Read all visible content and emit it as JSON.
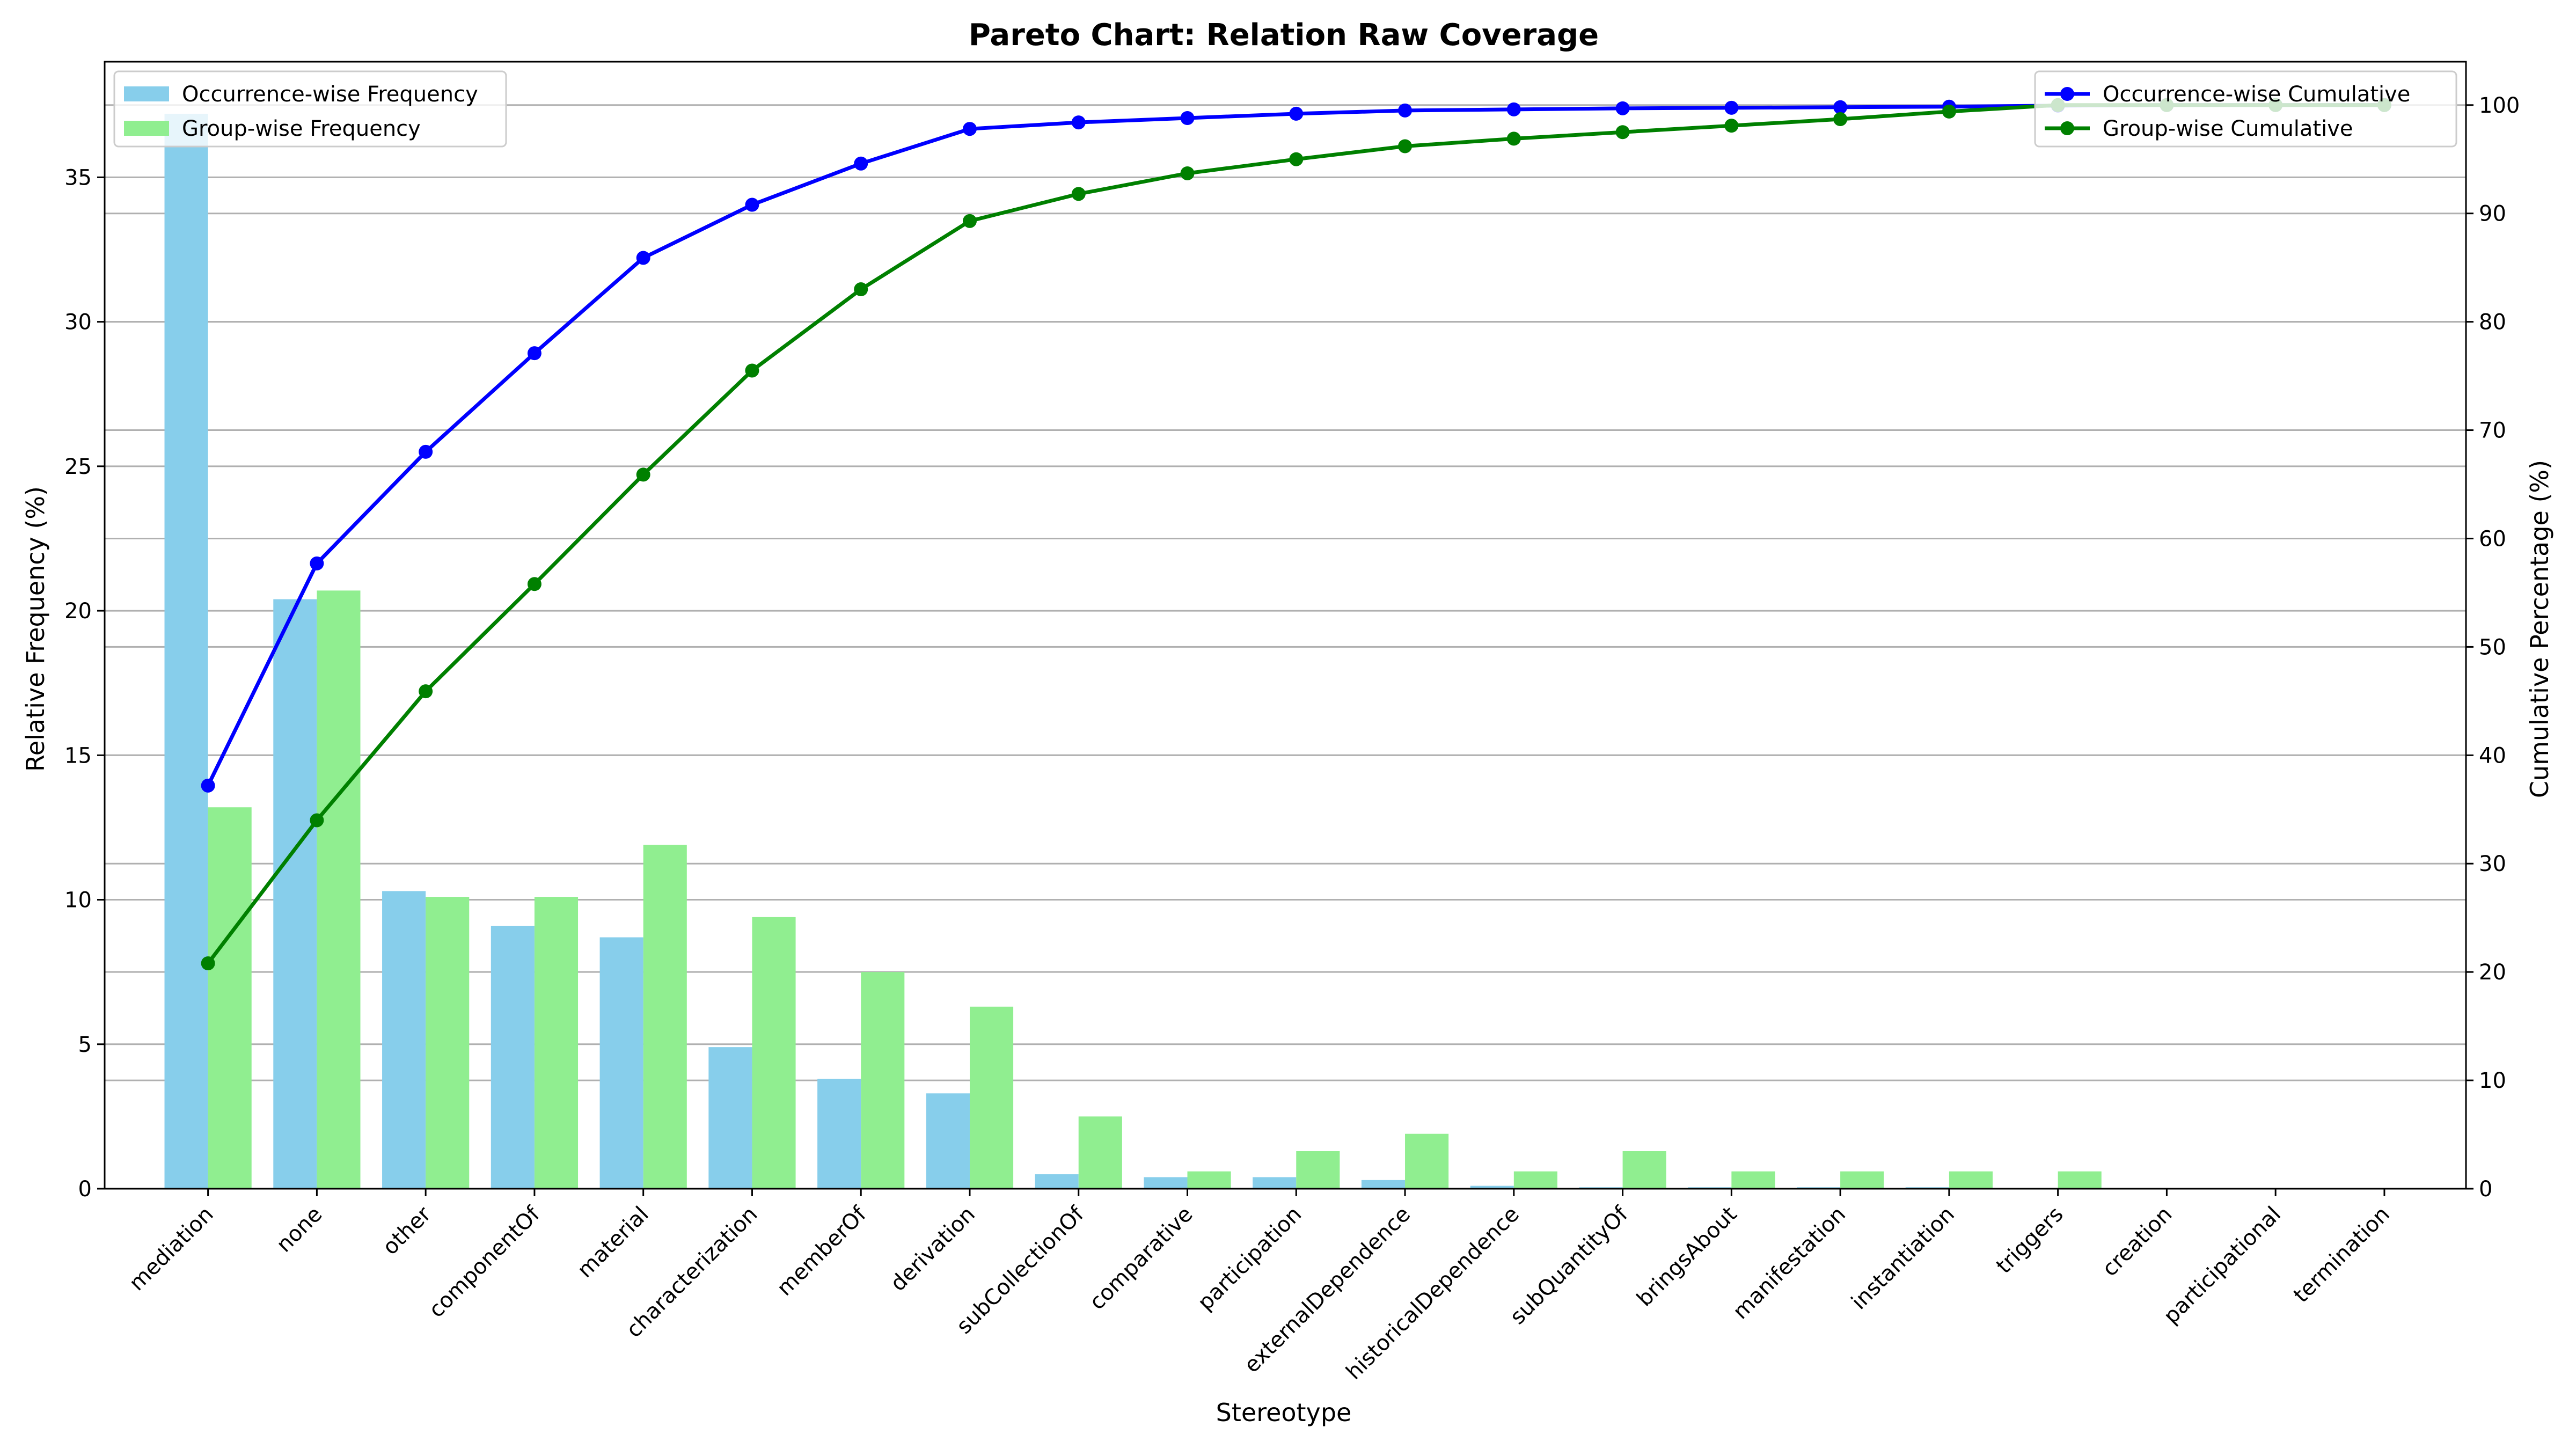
{
  "chart_data": {
    "type": "bar",
    "title": "Pareto Chart: Relation Raw Coverage",
    "xlabel": "Stereotype",
    "ylabel": "Relative Frequency (%)",
    "y2label": "Cumulative Percentage (%)",
    "ylim": [
      0,
      39
    ],
    "y2lim": [
      0,
      104
    ],
    "yticks": [
      0,
      5,
      10,
      15,
      20,
      25,
      30,
      35
    ],
    "y2ticks": [
      0,
      10,
      20,
      30,
      40,
      50,
      60,
      70,
      80,
      90,
      100
    ],
    "grid": true,
    "categories": [
      "mediation",
      "none",
      "other",
      "componentOf",
      "material",
      "characterization",
      "memberOf",
      "derivation",
      "subCollectionOf",
      "comparative",
      "participation",
      "externalDependence",
      "historicalDependence",
      "subQuantityOf",
      "bringsAbout",
      "manifestation",
      "instantiation",
      "triggers",
      "creation",
      "participational",
      "termination"
    ],
    "category_colors": {
      "none": "#0000ff",
      "other": "#ff0000"
    },
    "series": [
      {
        "name": "Occurrence-wise Frequency",
        "kind": "bar",
        "axis": "left",
        "color": "#87ceeb",
        "values": [
          37.2,
          20.4,
          10.3,
          9.1,
          8.7,
          4.9,
          3.8,
          3.3,
          0.5,
          0.4,
          0.4,
          0.3,
          0.1,
          0.05,
          0.05,
          0.05,
          0.05,
          0.02,
          0.0,
          0.0,
          0.0
        ]
      },
      {
        "name": "Group-wise Frequency",
        "kind": "bar",
        "axis": "left",
        "color": "#90ee90",
        "values": [
          13.2,
          20.7,
          10.1,
          10.1,
          11.9,
          9.4,
          7.5,
          6.3,
          2.5,
          0.6,
          1.3,
          1.9,
          0.6,
          1.3,
          0.6,
          0.6,
          0.6,
          0.6,
          0.0,
          0.0,
          0.0
        ]
      },
      {
        "name": "Occurrence-wise Cumulative",
        "kind": "line",
        "axis": "right",
        "color": "#0000ff",
        "values": [
          37.2,
          57.7,
          68.0,
          77.1,
          85.9,
          90.8,
          94.6,
          97.8,
          98.4,
          98.8,
          99.2,
          99.5,
          99.6,
          99.7,
          99.75,
          99.8,
          99.85,
          99.95,
          100.0,
          100.0,
          100.0
        ]
      },
      {
        "name": "Group-wise Cumulative",
        "kind": "line",
        "axis": "right",
        "color": "#008000",
        "values": [
          20.8,
          34.0,
          45.9,
          55.8,
          65.9,
          75.5,
          83.0,
          89.3,
          91.8,
          93.7,
          95.0,
          96.2,
          96.9,
          97.5,
          98.1,
          98.7,
          99.4,
          100.0,
          100.0,
          100.0,
          100.0
        ]
      }
    ],
    "legend_left": "top-left",
    "legend_right": "top-right"
  }
}
